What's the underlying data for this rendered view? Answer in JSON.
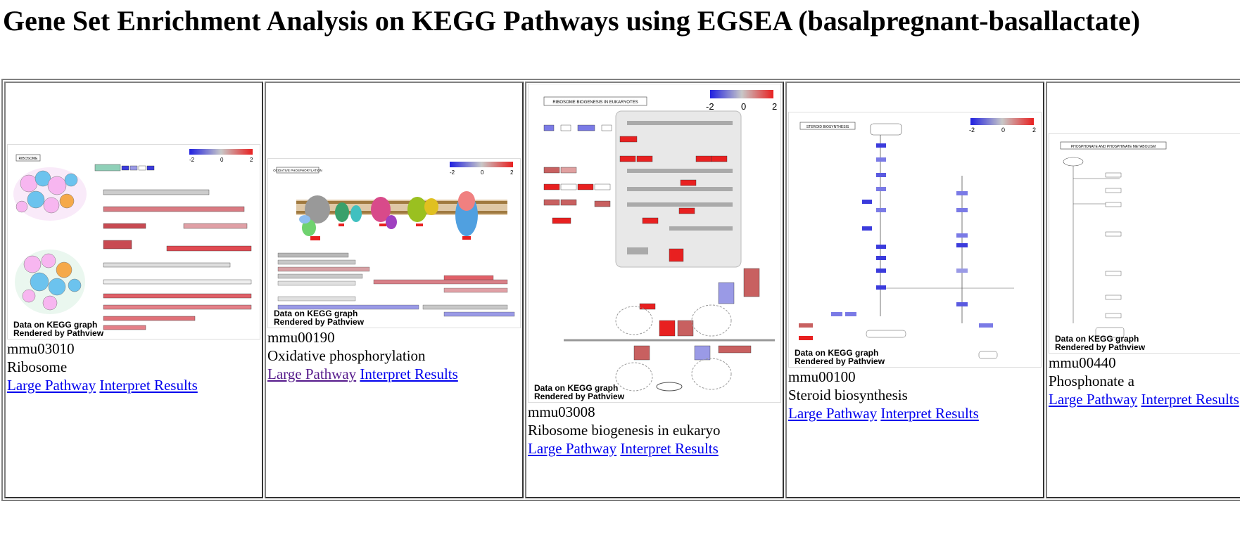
{
  "page": {
    "title": "Gene Set Enrichment Analysis on KEGG Pathways using EGSEA (basalpregnant-basallactate)"
  },
  "legend": {
    "min": "-2",
    "mid": "0",
    "max": "2"
  },
  "watermark": {
    "line1": "Data on KEGG graph",
    "line2": "Rendered by Pathview"
  },
  "colors": {
    "link": "#0000ee",
    "visited": "#551a8b",
    "up": "#e8303a",
    "down": "#3b3bdc",
    "neutral": "#b0b0b0"
  },
  "pathways": [
    {
      "id": "mmu03010",
      "name": "Ribosome",
      "graph_title": "RIBOSOME",
      "large_label": "Large Pathway",
      "interpret_label": "Interpret Results"
    },
    {
      "id": "mmu00190",
      "name": "Oxidative phosphorylation",
      "graph_title": "OXIDATIVE PHOSPHORYLATION",
      "large_label": "Large Pathway",
      "interpret_label": "Interpret Results"
    },
    {
      "id": "mmu03008",
      "name": "Ribosome biogenesis in eukaryo",
      "graph_title": "RIBOSOME BIOGENESIS IN EUKARYOTES",
      "large_label": "Large Pathway",
      "interpret_label": "Interpret Results"
    },
    {
      "id": "mmu00100",
      "name": "Steroid biosynthesis",
      "graph_title": "STEROID BIOSYNTHESIS",
      "large_label": "Large Pathway",
      "interpret_label": "Interpret Results"
    },
    {
      "id": "mmu00440",
      "name": "Phosphonate a",
      "graph_title": "PHOSPHONATE AND PHOSPHINATE METABOLISM",
      "large_label": "Large Pathway",
      "interpret_label": "Interpret Results"
    }
  ]
}
